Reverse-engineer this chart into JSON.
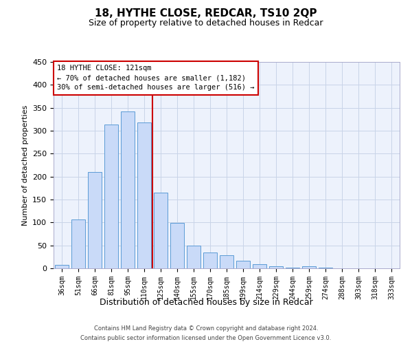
{
  "title": "18, HYTHE CLOSE, REDCAR, TS10 2QP",
  "subtitle": "Size of property relative to detached houses in Redcar",
  "xlabel": "Distribution of detached houses by size in Redcar",
  "ylabel": "Number of detached properties",
  "bar_labels": [
    "36sqm",
    "51sqm",
    "66sqm",
    "81sqm",
    "95sqm",
    "110sqm",
    "125sqm",
    "140sqm",
    "155sqm",
    "170sqm",
    "185sqm",
    "199sqm",
    "214sqm",
    "229sqm",
    "244sqm",
    "259sqm",
    "274sqm",
    "288sqm",
    "303sqm",
    "318sqm",
    "333sqm"
  ],
  "bar_values": [
    7,
    106,
    210,
    314,
    342,
    318,
    165,
    99,
    50,
    35,
    29,
    17,
    9,
    5,
    1,
    5,
    1,
    0,
    0,
    0,
    0
  ],
  "bar_color": "#c9daf8",
  "bar_edge_color": "#5b9bd5",
  "vline_color": "#cc0000",
  "vline_index": 5.5,
  "ylim": [
    0,
    450
  ],
  "yticks": [
    0,
    50,
    100,
    150,
    200,
    250,
    300,
    350,
    400,
    450
  ],
  "annotation_title": "18 HYTHE CLOSE: 121sqm",
  "annotation_line1": "← 70% of detached houses are smaller (1,182)",
  "annotation_line2": "30% of semi-detached houses are larger (516) →",
  "annotation_box_color": "#ffffff",
  "annotation_box_edge": "#cc0000",
  "grid_color": "#c8d4e8",
  "bg_color": "#edf2fc",
  "footer_line1": "Contains HM Land Registry data © Crown copyright and database right 2024.",
  "footer_line2": "Contains public sector information licensed under the Open Government Licence v3.0."
}
